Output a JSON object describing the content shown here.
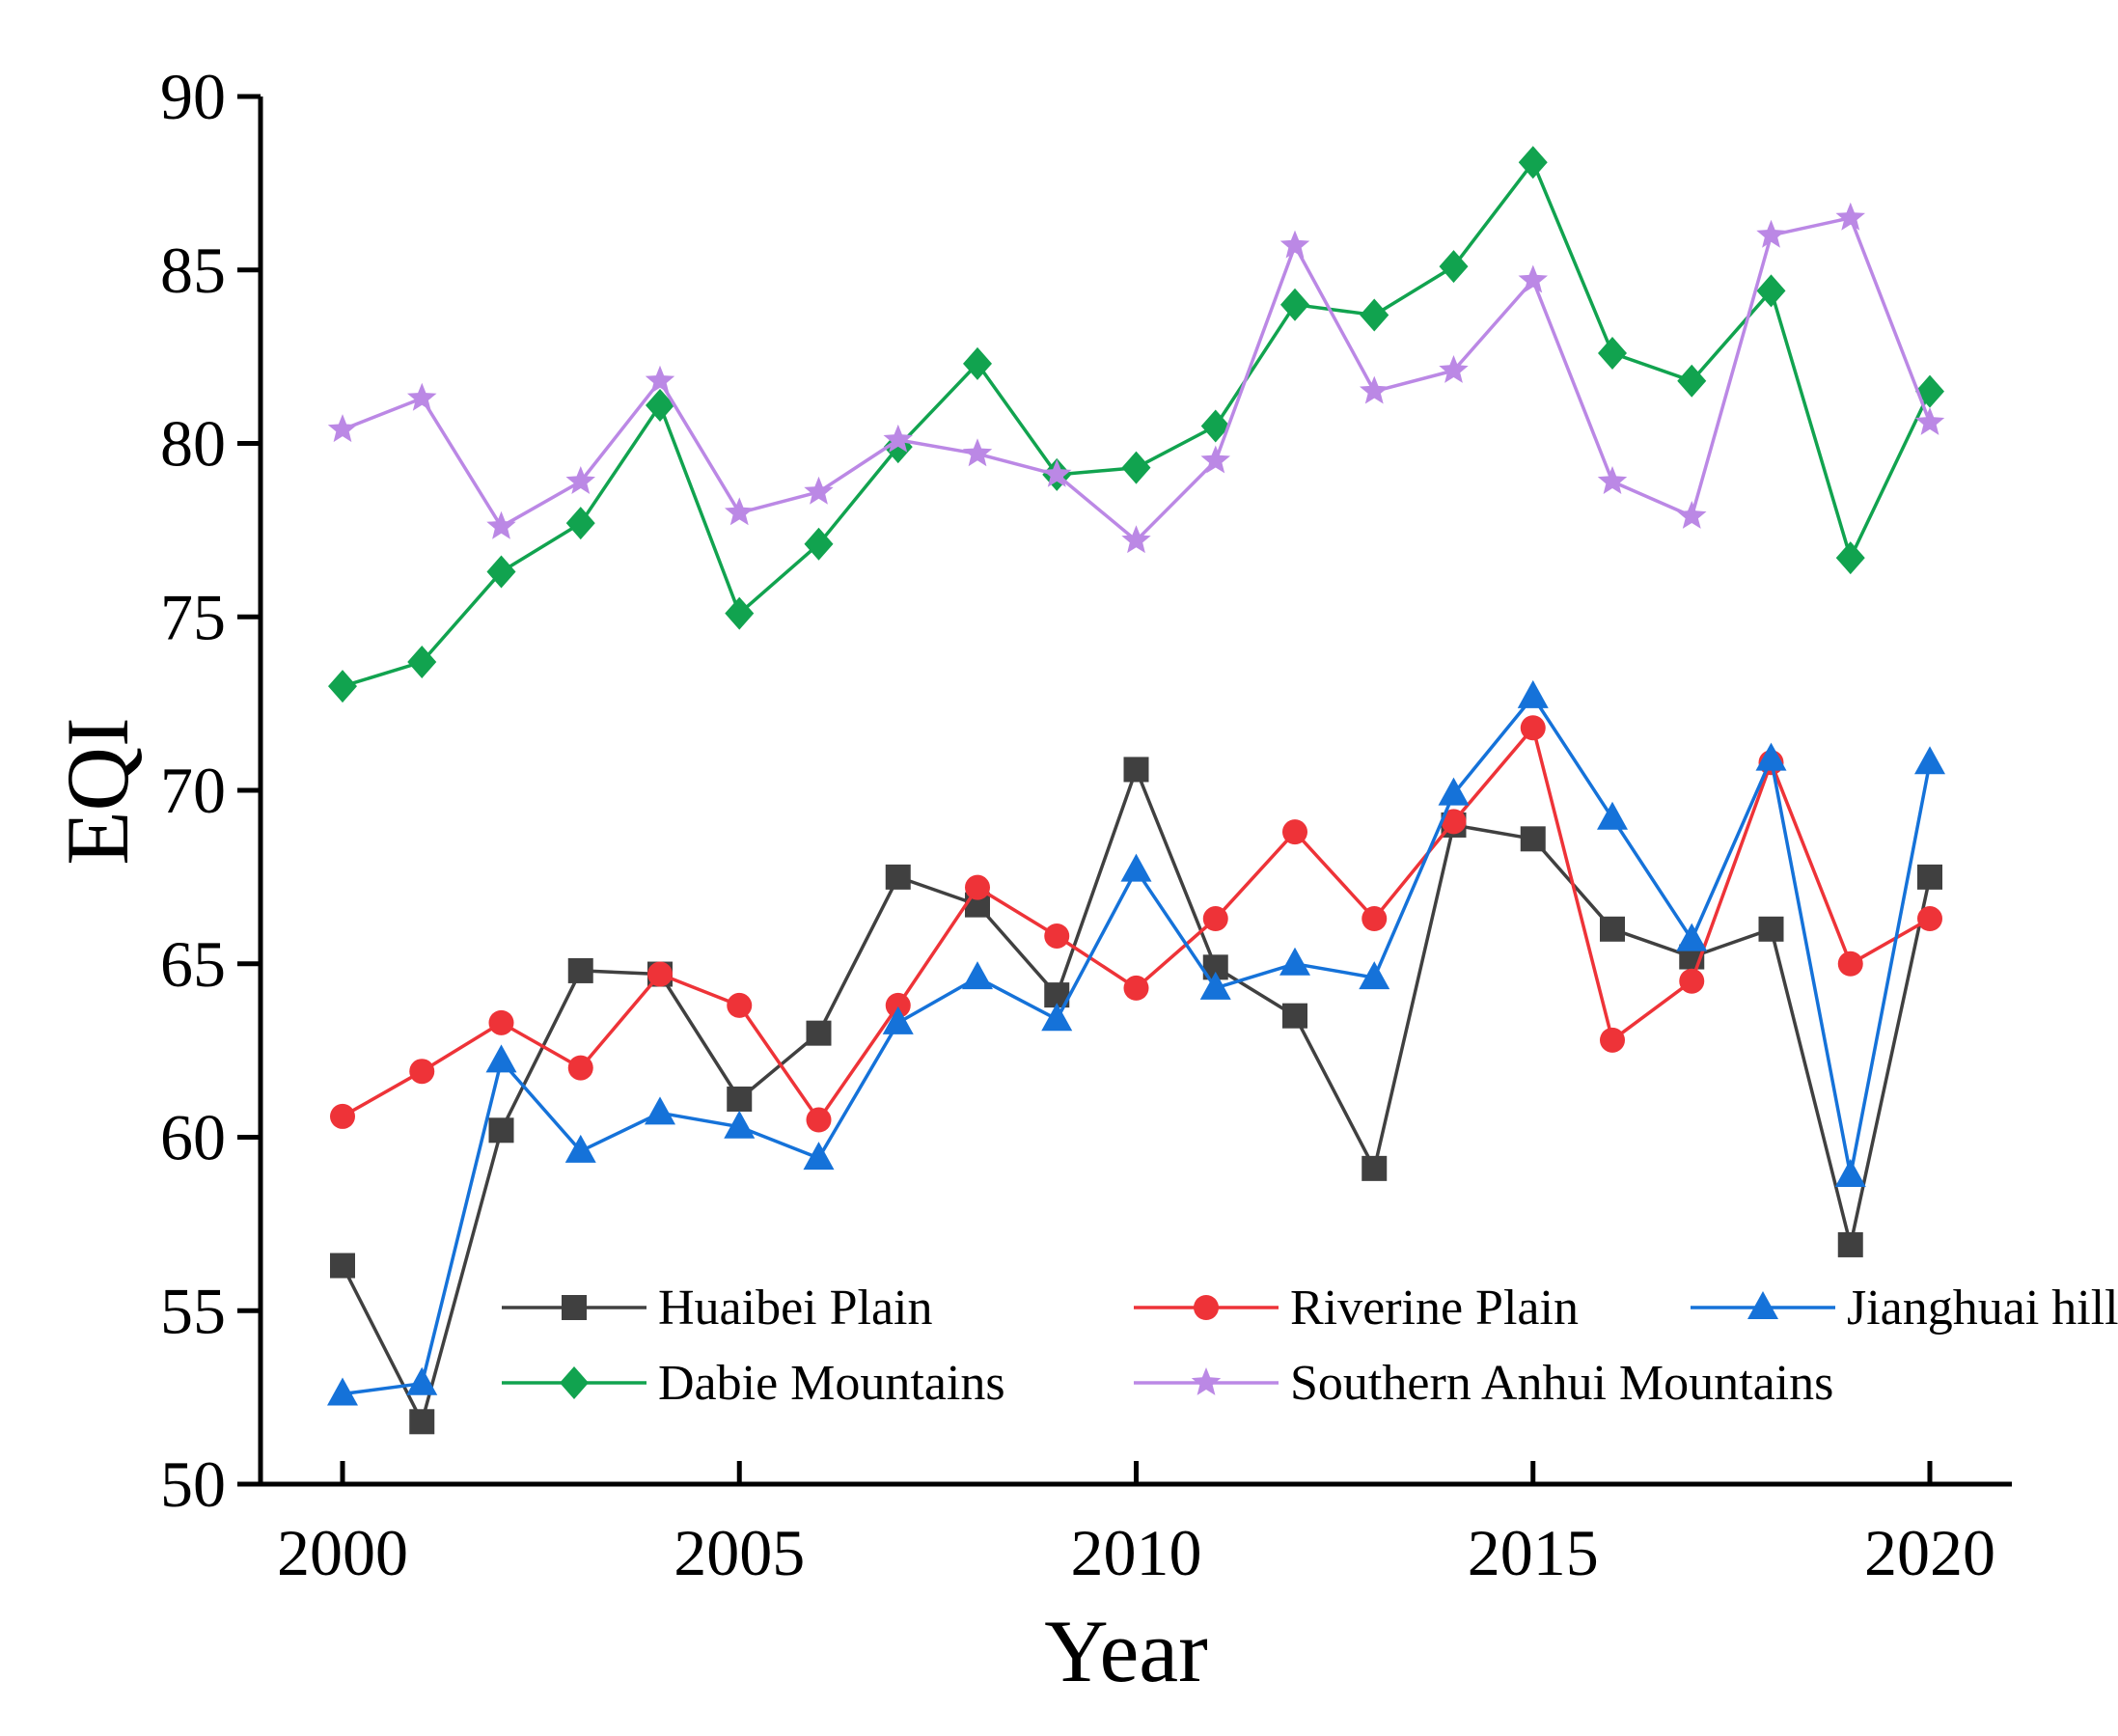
{
  "chart_data": {
    "type": "line",
    "title": "",
    "xlabel": "Year",
    "ylabel": "EQI",
    "xlim": [
      2000,
      2020
    ],
    "ylim": [
      50,
      90
    ],
    "xticks": [
      2000,
      2005,
      2010,
      2015,
      2020
    ],
    "xtick_labels": [
      "2000",
      "2005",
      "2010",
      "2015",
      "2020"
    ],
    "yticks": [
      50,
      55,
      60,
      65,
      70,
      75,
      80,
      85,
      90
    ],
    "ytick_labels": [
      "50",
      "55",
      "60",
      "65",
      "70",
      "75",
      "80",
      "85",
      "90"
    ],
    "grid": false,
    "legend_position": "bottom-center",
    "x": [
      2000,
      2001,
      2002,
      2003,
      2004,
      2005,
      2006,
      2007,
      2008,
      2009,
      2010,
      2011,
      2012,
      2013,
      2014,
      2015,
      2016,
      2017,
      2018,
      2019,
      2020
    ],
    "series": [
      {
        "name": "Huaibei Plain",
        "color": "#404040",
        "marker": "square",
        "values": [
          56.3,
          51.8,
          60.2,
          64.8,
          64.7,
          61.1,
          63.0,
          67.5,
          66.7,
          64.1,
          70.6,
          64.9,
          63.5,
          59.1,
          69.0,
          68.6,
          66.0,
          65.2,
          66.0,
          56.9,
          67.5
        ]
      },
      {
        "name": "Riverine Plain",
        "color": "#ee3338",
        "marker": "circle",
        "values": [
          60.6,
          61.9,
          63.3,
          62.0,
          64.7,
          63.8,
          60.5,
          63.8,
          67.2,
          65.8,
          64.3,
          66.3,
          68.8,
          66.3,
          69.1,
          71.8,
          62.8,
          64.5,
          70.8,
          65.0,
          66.3
        ]
      },
      {
        "name": "Jianghuai hills",
        "color": "#1572d9",
        "marker": "triangle",
        "values": [
          52.6,
          52.9,
          62.2,
          59.6,
          60.7,
          60.3,
          59.4,
          63.3,
          64.6,
          63.4,
          67.7,
          64.3,
          65.0,
          64.6,
          69.9,
          72.7,
          69.2,
          65.7,
          70.9,
          58.9,
          70.8
        ]
      },
      {
        "name": "Dabie Mountains",
        "color": "#11a34f",
        "marker": "diamond",
        "values": [
          73.0,
          73.7,
          76.3,
          77.7,
          81.1,
          75.1,
          77.1,
          79.9,
          82.3,
          79.1,
          79.3,
          80.5,
          84.0,
          83.7,
          85.1,
          88.1,
          82.6,
          81.8,
          84.4,
          76.7,
          81.5
        ]
      },
      {
        "name": "Southern Anhui Mountains",
        "color": "#bb88e5",
        "marker": "star",
        "values": [
          80.4,
          81.3,
          77.6,
          78.9,
          81.8,
          78.0,
          78.6,
          80.1,
          79.7,
          79.1,
          77.2,
          79.5,
          85.7,
          81.5,
          82.1,
          84.7,
          78.9,
          77.9,
          86.0,
          86.5,
          80.6
        ]
      }
    ]
  }
}
